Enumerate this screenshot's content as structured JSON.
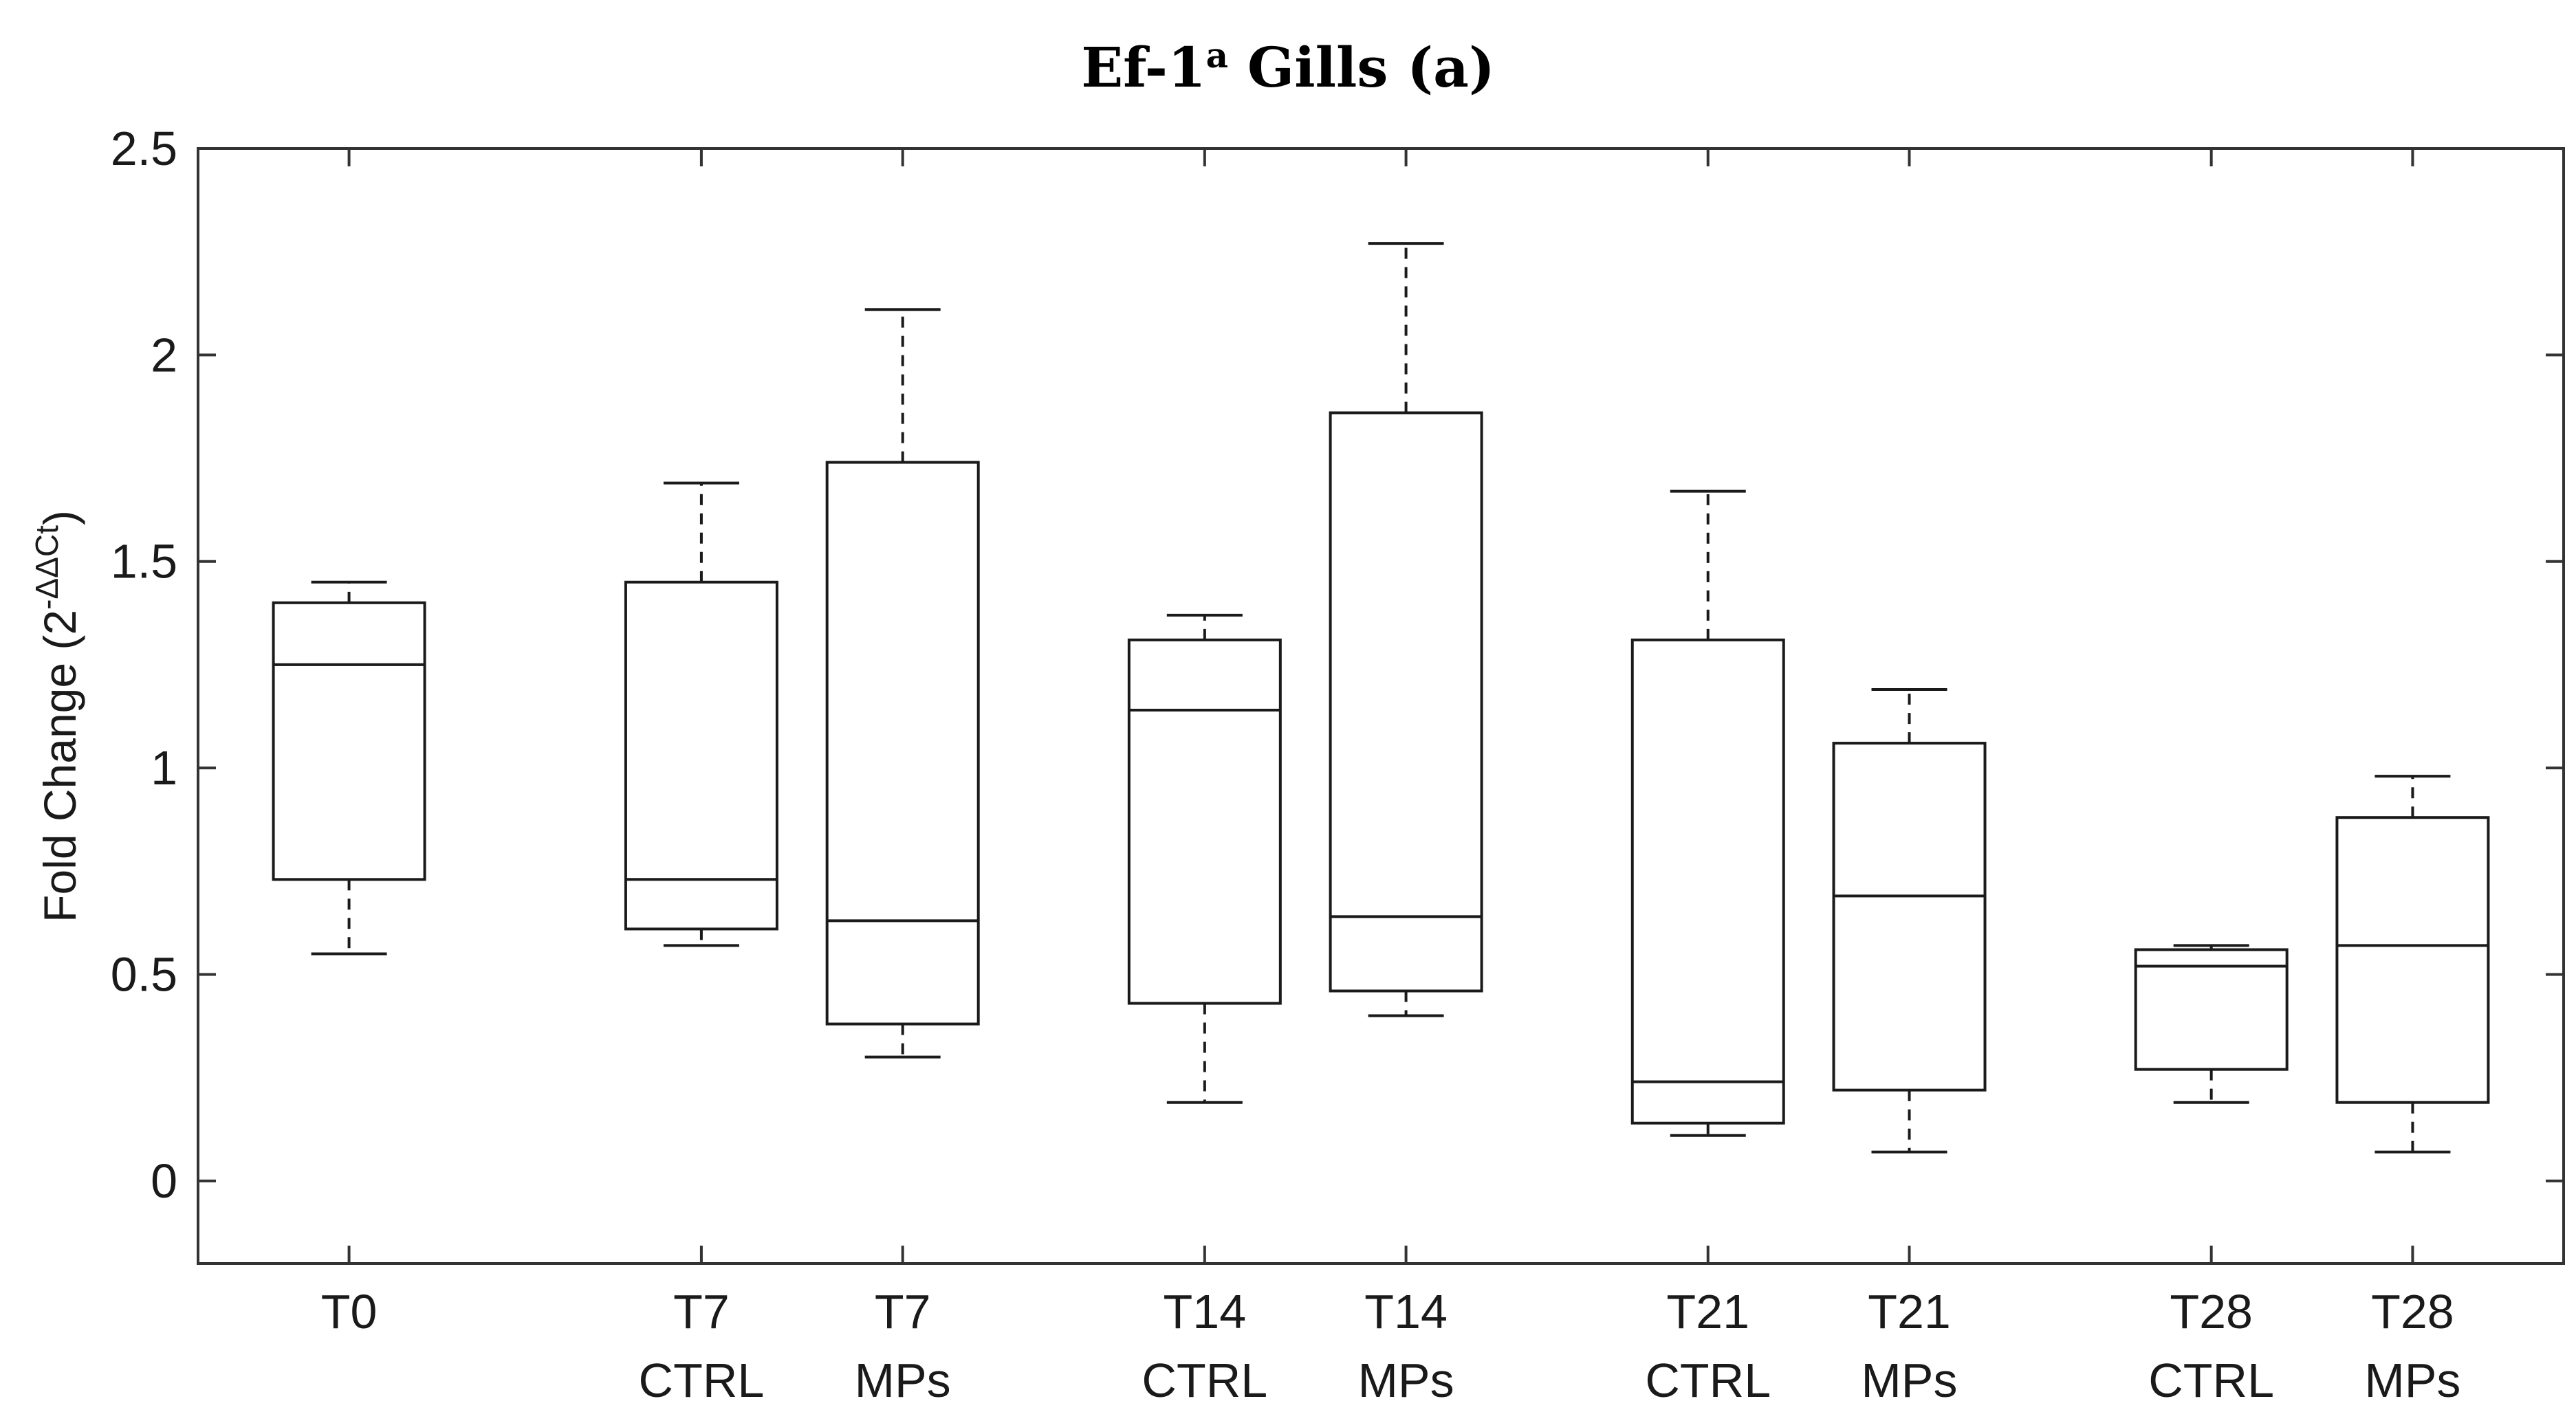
{
  "chart_data": {
    "type": "box",
    "title": {
      "pre": "Ef-1",
      "sup": "a",
      "post": " Gills (a)"
    },
    "ylabel": {
      "base": "Fold Change (2",
      "sup": "-ΔΔCt",
      "close": ")"
    },
    "ylim": [
      -0.2,
      2.5
    ],
    "yticks": [
      0,
      0.5,
      1,
      1.5,
      2,
      2.5
    ],
    "ytick_labels": [
      "0",
      "0.5",
      "1",
      "1.5",
      "2",
      "2.5"
    ],
    "grid": false,
    "categories": [
      {
        "line1": "T0",
        "line2": ""
      },
      {
        "line1": "T7",
        "line2": "CTRL"
      },
      {
        "line1": "T7",
        "line2": "MPs"
      },
      {
        "line1": "T14",
        "line2": "CTRL"
      },
      {
        "line1": "T14",
        "line2": "MPs"
      },
      {
        "line1": "T21",
        "line2": "CTRL"
      },
      {
        "line1": "T21",
        "line2": "MPs"
      },
      {
        "line1": "T28",
        "line2": "CTRL"
      },
      {
        "line1": "T28",
        "line2": "MPs"
      }
    ],
    "x_positions": [
      1,
      2.75,
      3.75,
      5.25,
      6.25,
      7.75,
      8.75,
      10.25,
      11.25
    ],
    "xlim": [
      0.25,
      12.0
    ],
    "boxes": [
      {
        "min": 0.55,
        "q1": 0.73,
        "median": 1.25,
        "q3": 1.4,
        "max": 1.45
      },
      {
        "min": 0.57,
        "q1": 0.61,
        "median": 0.73,
        "q3": 1.45,
        "max": 1.69
      },
      {
        "min": 0.3,
        "q1": 0.38,
        "median": 0.63,
        "q3": 1.74,
        "max": 2.11
      },
      {
        "min": 0.19,
        "q1": 0.43,
        "median": 1.14,
        "q3": 1.31,
        "max": 1.37
      },
      {
        "min": 0.4,
        "q1": 0.46,
        "median": 0.64,
        "q3": 1.86,
        "max": 2.27
      },
      {
        "min": 0.11,
        "q1": 0.14,
        "median": 0.24,
        "q3": 1.31,
        "max": 1.67
      },
      {
        "min": 0.07,
        "q1": 0.22,
        "median": 0.69,
        "q3": 1.06,
        "max": 1.19
      },
      {
        "min": 0.19,
        "q1": 0.27,
        "median": 0.52,
        "q3": 0.56,
        "max": 0.57
      },
      {
        "min": 0.07,
        "q1": 0.19,
        "median": 0.57,
        "q3": 0.88,
        "max": 0.98
      }
    ],
    "colors": {
      "box": "#1a1a1a",
      "axis": "#333333",
      "background": "#ffffff"
    }
  }
}
